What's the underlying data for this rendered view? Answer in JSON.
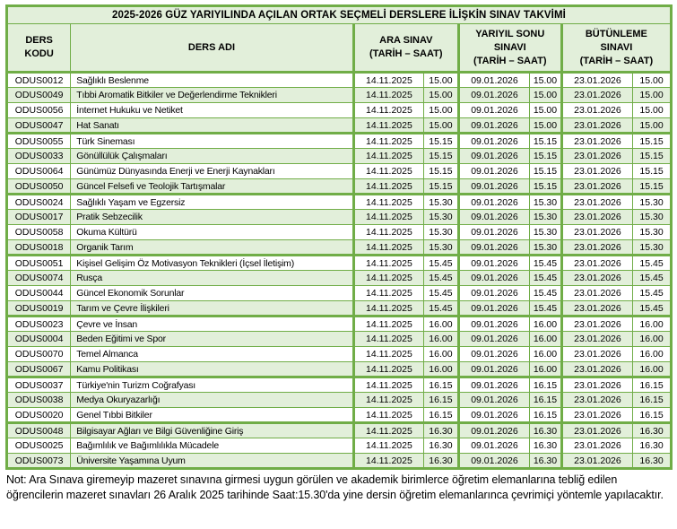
{
  "colors": {
    "border_green": "#70AD47",
    "row_fill_green": "#E2EFDA",
    "row_fill_white": "#FFFFFF",
    "text": "#000000"
  },
  "table": {
    "title": "2025-2026 GÜZ YARIYILINDA AÇILAN ORTAK SEÇMELİ DERSLERE İLİŞKİN SINAV TAKVİMİ",
    "headers": {
      "code": "DERS\nKODU",
      "name": "DERS ADI",
      "midterm": "ARA SINAV\n(TARİH – SAAT)",
      "final": "YARIYIL SONU\nSINAVI\n(TARİH – SAAT)",
      "makeup": "BÜTÜNLEME\nSINAVI\n(TARİH – SAAT)"
    },
    "dates": {
      "midterm": "14.11.2025",
      "final": "09.01.2026",
      "makeup": "23.01.2026"
    },
    "groups": [
      {
        "time": "15.00",
        "courses": [
          [
            "ODUS0012",
            "Sağlıklı Beslenme"
          ],
          [
            "ODUS0049",
            "Tıbbi Aromatik Bitkiler ve Değerlendirme Teknikleri"
          ],
          [
            "ODUS0056",
            "İnternet Hukuku ve Netiket"
          ],
          [
            "ODUS0047",
            "Hat Sanatı"
          ]
        ]
      },
      {
        "time": "15.15",
        "courses": [
          [
            "ODUS0055",
            "Türk Sineması"
          ],
          [
            "ODUS0033",
            "Gönüllülük Çalışmaları"
          ],
          [
            "ODUS0064",
            "Günümüz Dünyasında Enerji ve Enerji Kaynakları"
          ],
          [
            "ODUS0050",
            "Güncel Felsefi ve Teolojik Tartışmalar"
          ]
        ]
      },
      {
        "time": "15.30",
        "courses": [
          [
            "ODUS0024",
            "Sağlıklı Yaşam ve Egzersiz"
          ],
          [
            "ODUS0017",
            "Pratik Sebzecilik"
          ],
          [
            "ODUS0058",
            "Okuma Kültürü"
          ],
          [
            "ODUS0018",
            "Organik Tarım"
          ]
        ]
      },
      {
        "time": "15.45",
        "courses": [
          [
            "ODUS0051",
            "Kişisel Gelişim Öz Motivasyon Teknikleri (İçsel İletişim)"
          ],
          [
            "ODUS0074",
            "Rusça"
          ],
          [
            "ODUS0044",
            "Güncel Ekonomik Sorunlar"
          ],
          [
            "ODUS0019",
            "Tarım ve Çevre İlişkileri"
          ]
        ]
      },
      {
        "time": "16.00",
        "courses": [
          [
            "ODUS0023",
            "Çevre ve İnsan"
          ],
          [
            "ODUS0004",
            "Beden Eğitimi ve Spor"
          ],
          [
            "ODUS0070",
            "Temel Almanca"
          ],
          [
            "ODUS0067",
            "Kamu Politikası"
          ]
        ]
      },
      {
        "time": "16.15",
        "courses": [
          [
            "ODUS0037",
            "Türkiye'nin Turizm Coğrafyası"
          ],
          [
            "ODUS0038",
            "Medya Okuryazarlığı"
          ],
          [
            "ODUS0020",
            "Genel Tıbbi Bitkiler"
          ]
        ]
      },
      {
        "time": "16.30",
        "courses": [
          [
            "ODUS0048",
            "Bilgisayar Ağları ve Bilgi Güvenliğine Giriş"
          ],
          [
            "ODUS0025",
            "Bağımlılık ve Bağımlılıkla Mücadele"
          ],
          [
            "ODUS0073",
            "Üniversite Yaşamına Uyum"
          ]
        ]
      }
    ]
  },
  "note": "Not: Ara Sınava giremeyip mazeret sınavına girmesi uygun görülen ve akademik birimlerce öğretim elemanlarına tebliğ edilen öğrencilerin mazeret sınavları 26 Aralık 2025 tarihinde Saat:15.30'da yine dersin öğretim elemanlarınca çevrimiçi yöntemle yapılacaktır."
}
